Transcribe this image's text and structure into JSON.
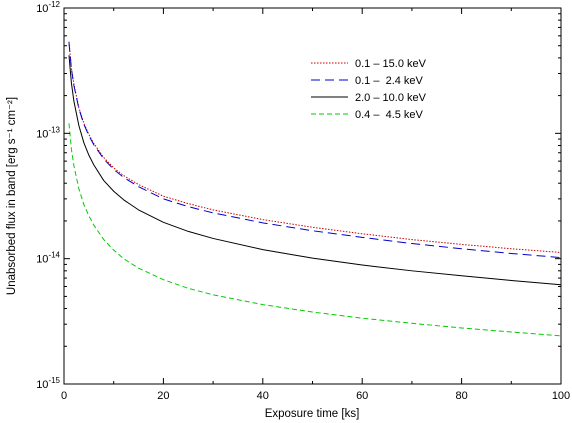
{
  "chart_data": {
    "type": "line",
    "title": "",
    "xlabel": "Exposure time [ks]",
    "ylabel": "Unabsorbed flux in band [erg s⁻¹ cm⁻²]",
    "xscale": "linear",
    "yscale": "log",
    "xlim": [
      0,
      100
    ],
    "ylim": [
      1e-15,
      1e-12
    ],
    "grid": false,
    "legend_position": "top-right",
    "x_ticks": [
      0,
      20,
      40,
      60,
      80,
      100
    ],
    "x_tick_labels": [
      "0",
      "20",
      "40",
      "60",
      "80",
      "100"
    ],
    "y_ticks": [
      1e-15,
      1e-14,
      1e-13,
      1e-12
    ],
    "y_tick_labels": [
      {
        "base": "10",
        "exp": "-15"
      },
      {
        "base": "10",
        "exp": "-14"
      },
      {
        "base": "10",
        "exp": "-13"
      },
      {
        "base": "10",
        "exp": "-12"
      }
    ],
    "x": [
      1,
      1.5,
      2,
      3,
      4,
      5,
      6,
      8,
      10,
      12,
      15,
      20,
      25,
      30,
      40,
      50,
      60,
      70,
      80,
      90,
      100
    ],
    "series": [
      {
        "name": "0.1 – 15.0 keV",
        "color": "#cc0000",
        "dash": "1.5,1.5",
        "values": [
          5.4e-13,
          3.3e-13,
          2.45e-13,
          1.6e-13,
          1.2e-13,
          9.8e-14,
          8.3e-14,
          6.4e-14,
          5.3e-14,
          4.6e-14,
          3.9e-14,
          3.15e-14,
          2.75e-14,
          2.45e-14,
          2.05e-14,
          1.78e-14,
          1.58e-14,
          1.42e-14,
          1.3e-14,
          1.2e-14,
          1.12e-14
        ]
      },
      {
        "name": "0.1 –  2.4 keV",
        "color": "#0000cc",
        "dash": "9,5",
        "values": [
          5.3e-13,
          3.25e-13,
          2.4e-13,
          1.57e-13,
          1.18e-13,
          9.6e-14,
          8.1e-14,
          6.25e-14,
          5.15e-14,
          4.45e-14,
          3.75e-14,
          3e-14,
          2.6e-14,
          2.32e-14,
          1.93e-14,
          1.67e-14,
          1.48e-14,
          1.32e-14,
          1.2e-14,
          1.1e-14,
          1.02e-14
        ]
      },
      {
        "name": "2.0 – 10.0 keV",
        "color": "#000000",
        "dash": "",
        "values": [
          4.2e-13,
          2.5e-13,
          1.8e-13,
          1.15e-13,
          8.4e-14,
          6.7e-14,
          5.6e-14,
          4.2e-14,
          3.45e-14,
          2.95e-14,
          2.45e-14,
          1.95e-14,
          1.65e-14,
          1.45e-14,
          1.18e-14,
          1.01e-14,
          8.9e-15,
          8e-15,
          7.3e-15,
          6.7e-15,
          6.2e-15
        ]
      },
      {
        "name": "0.4 –  4.5 keV",
        "color": "#00cc00",
        "dash": "5,3",
        "values": [
          1.2e-13,
          7.4e-14,
          5.5e-14,
          3.6e-14,
          2.7e-14,
          2.2e-14,
          1.85e-14,
          1.42e-14,
          1.17e-14,
          1e-14,
          8.4e-15,
          6.8e-15,
          5.8e-15,
          5.15e-15,
          4.3e-15,
          3.75e-15,
          3.35e-15,
          3.05e-15,
          2.8e-15,
          2.6e-15,
          2.42e-15
        ]
      }
    ]
  }
}
